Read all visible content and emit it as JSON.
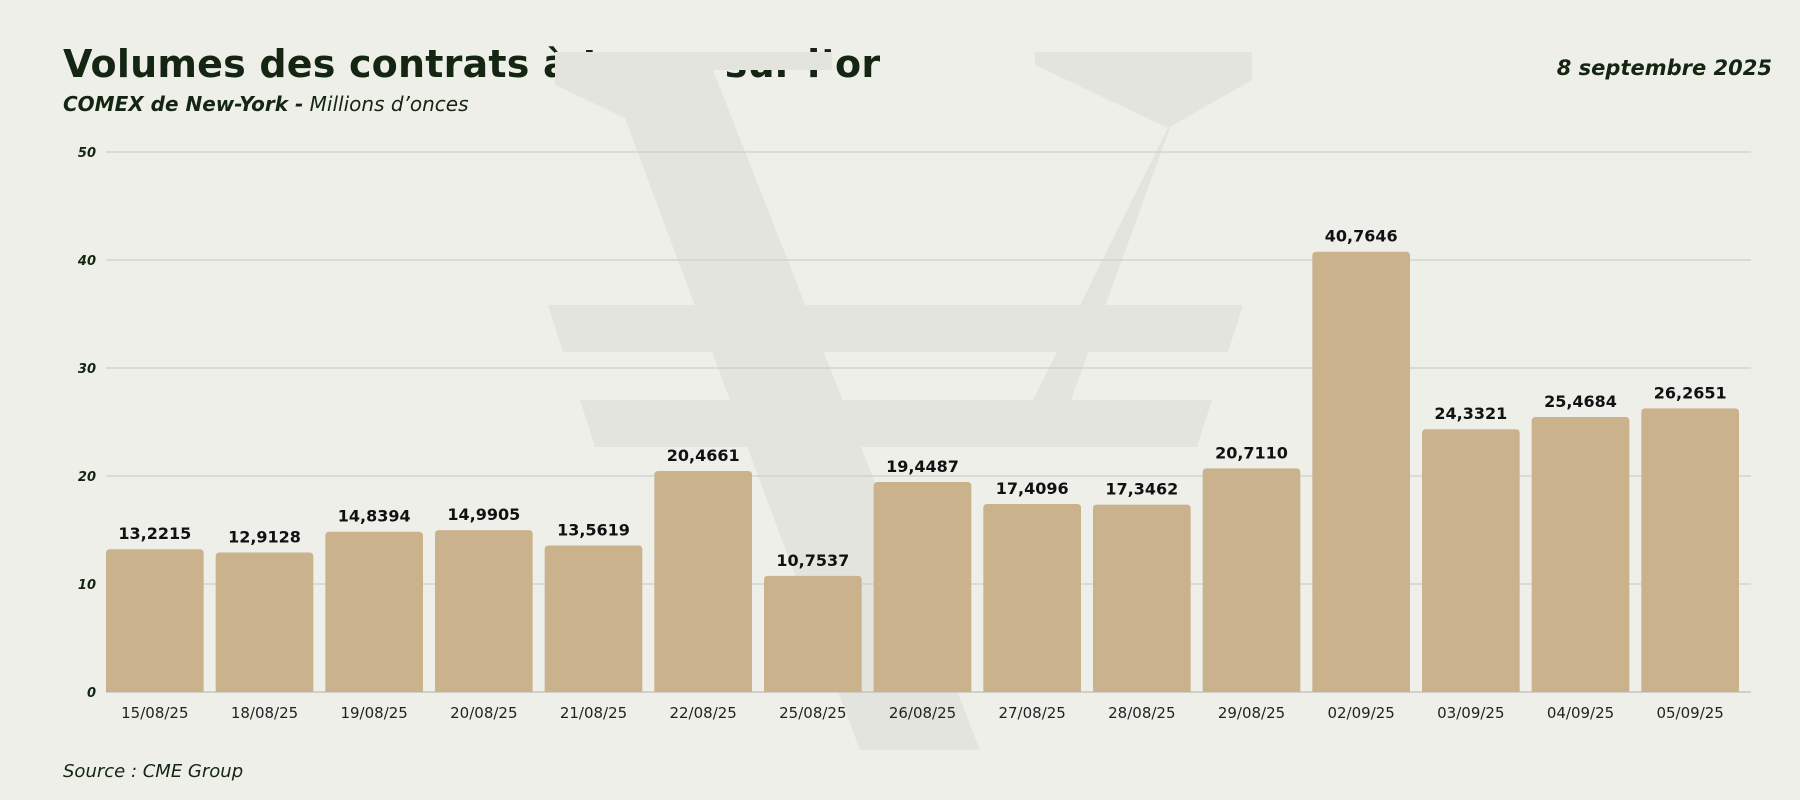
{
  "header": {
    "title": "Volumes des contrats à terme sur l’or",
    "subtitle_strong": "COMEX de New-York -",
    "subtitle_rest": " Millions d’onces",
    "date": "8 septembre 2025"
  },
  "footer": {
    "source": "Source : CME Group"
  },
  "colors": {
    "bar": "#c9b28c",
    "grid": "#cfcfca",
    "watermark": "#e4e4de",
    "text": "#142612"
  },
  "chart_data": {
    "type": "bar",
    "categories": [
      "15/08/25",
      "18/08/25",
      "19/08/25",
      "20/08/25",
      "21/08/25",
      "22/08/25",
      "25/08/25",
      "26/08/25",
      "27/08/25",
      "28/08/25",
      "29/08/25",
      "02/09/25",
      "03/09/25",
      "04/09/25",
      "05/09/25"
    ],
    "values": [
      13.2215,
      12.9128,
      14.8394,
      14.9905,
      13.5619,
      20.4661,
      10.7537,
      19.4487,
      17.4096,
      17.3462,
      20.711,
      40.7646,
      24.3321,
      25.4684,
      26.2651
    ],
    "value_labels": [
      "13,2215",
      "12,9128",
      "14,8394",
      "14,9905",
      "13,5619",
      "20,4661",
      "10,7537",
      "19,4487",
      "17,4096",
      "17,3462",
      "20,7110",
      "40,7646",
      "24,3321",
      "25,4684",
      "26,2651"
    ],
    "ylim": [
      0,
      50
    ],
    "yticks": [
      0,
      10,
      20,
      30,
      40,
      50
    ],
    "grid": true,
    "legend": "none"
  }
}
